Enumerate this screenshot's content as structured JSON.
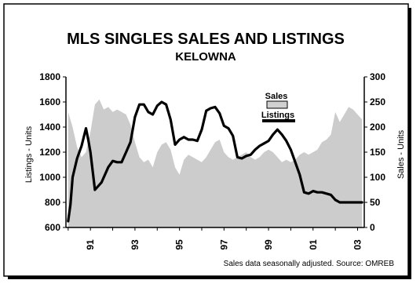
{
  "chart_data": {
    "type": "area",
    "title": "MLS SINGLES SALES AND LISTINGS",
    "subtitle": "KELOWNA",
    "ylabel_left": "Listings - Units",
    "ylabel_right": "Sales - Units",
    "ylim_left": [
      600,
      1800
    ],
    "ylim_right": [
      0,
      300
    ],
    "yticks_left": [
      600,
      800,
      1000,
      1200,
      1400,
      1600,
      1800
    ],
    "yticks_right": [
      0,
      50,
      100,
      150,
      200,
      250,
      300
    ],
    "xlim": [
      1989.9,
      2003.3
    ],
    "xtick_values": [
      1991,
      1993,
      1995,
      1997,
      1999,
      2001,
      2003
    ],
    "xtick_labels": [
      "91",
      "93",
      "95",
      "97",
      "99",
      "01",
      "03"
    ],
    "note": "Sales data seasonally adjusted.  Source: OMREB",
    "legend": {
      "position": "top-right"
    },
    "colors": {
      "sales": "#cccccc",
      "listings": "#000000"
    },
    "series": [
      {
        "name": "Sales",
        "type": "area",
        "axis": "right",
        "x": [
          1990.0,
          1990.2,
          1990.4,
          1990.6,
          1990.8,
          1991.0,
          1991.2,
          1991.4,
          1991.6,
          1991.8,
          1992.0,
          1992.2,
          1992.4,
          1992.6,
          1992.8,
          1993.0,
          1993.2,
          1993.4,
          1993.6,
          1993.8,
          1994.0,
          1994.2,
          1994.4,
          1994.6,
          1994.8,
          1995.0,
          1995.2,
          1995.4,
          1995.6,
          1995.8,
          1996.0,
          1996.2,
          1996.4,
          1996.6,
          1996.8,
          1997.0,
          1997.2,
          1997.4,
          1997.6,
          1997.8,
          1998.0,
          1998.2,
          1998.4,
          1998.6,
          1998.8,
          1999.0,
          1999.2,
          1999.4,
          1999.6,
          1999.8,
          2000.0,
          2000.2,
          2000.4,
          2000.6,
          2000.8,
          2001.0,
          2001.2,
          2001.4,
          2001.6,
          2001.8,
          2002.0,
          2002.2,
          2002.4,
          2002.6,
          2002.8,
          2003.0,
          2003.2
        ],
        "values": [
          230,
          200,
          160,
          140,
          150,
          190,
          245,
          255,
          235,
          240,
          230,
          235,
          230,
          225,
          205,
          170,
          140,
          130,
          135,
          120,
          150,
          165,
          170,
          155,
          120,
          105,
          135,
          145,
          140,
          135,
          130,
          140,
          155,
          170,
          175,
          150,
          140,
          135,
          140,
          145,
          150,
          140,
          135,
          140,
          150,
          155,
          150,
          140,
          130,
          135,
          130,
          135,
          145,
          150,
          145,
          150,
          155,
          170,
          175,
          185,
          230,
          210,
          225,
          240,
          235,
          225,
          215
        ]
      },
      {
        "name": "Listings",
        "type": "line",
        "axis": "left",
        "x": [
          1990.0,
          1990.1,
          1990.2,
          1990.4,
          1990.6,
          1990.8,
          1990.9,
          1991.0,
          1991.2,
          1991.5,
          1991.8,
          1992.0,
          1992.2,
          1992.4,
          1992.6,
          1992.8,
          1993.0,
          1993.2,
          1993.4,
          1993.6,
          1993.8,
          1994.0,
          1994.2,
          1994.4,
          1994.6,
          1994.8,
          1995.0,
          1995.2,
          1995.4,
          1995.6,
          1995.8,
          1996.0,
          1996.2,
          1996.4,
          1996.6,
          1996.8,
          1997.0,
          1997.2,
          1997.4,
          1997.6,
          1997.8,
          1998.0,
          1998.2,
          1998.4,
          1998.6,
          1998.8,
          1999.0,
          1999.2,
          1999.4,
          1999.6,
          1999.8,
          2000.0,
          2000.2,
          2000.4,
          2000.6,
          2000.8,
          2001.0,
          2001.2,
          2001.4,
          2001.6,
          2001.8,
          2002.0,
          2002.2,
          2002.4,
          2002.6,
          2002.8,
          2003.0,
          2003.2
        ],
        "values": [
          650,
          780,
          1000,
          1150,
          1250,
          1390,
          1300,
          1200,
          900,
          960,
          1080,
          1130,
          1120,
          1120,
          1200,
          1280,
          1480,
          1580,
          1580,
          1520,
          1500,
          1570,
          1600,
          1580,
          1460,
          1260,
          1300,
          1320,
          1300,
          1300,
          1290,
          1380,
          1530,
          1550,
          1560,
          1510,
          1410,
          1390,
          1330,
          1160,
          1150,
          1170,
          1180,
          1220,
          1250,
          1270,
          1290,
          1340,
          1380,
          1340,
          1290,
          1220,
          1120,
          1020,
          880,
          870,
          890,
          880,
          880,
          870,
          860,
          820,
          800,
          800,
          800,
          800,
          800,
          800
        ]
      }
    ]
  }
}
